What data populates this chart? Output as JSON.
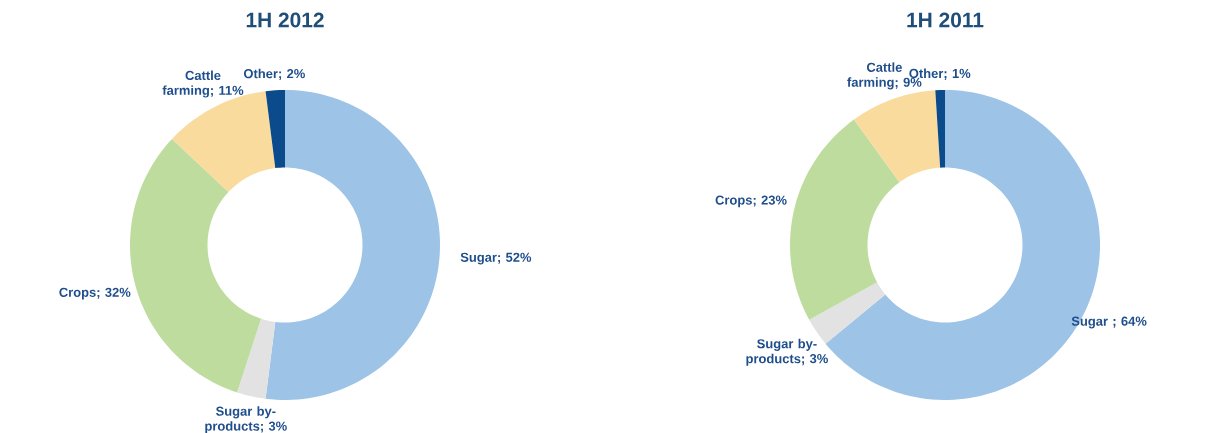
{
  "chart_data": [
    {
      "type": "donut",
      "title": "1H 2012",
      "categories": [
        "Sugar; 52%",
        "Sugar by-products; 3%",
        "Crops; 32%",
        "Cattle farming; 11%",
        "Other; 2%"
      ],
      "values": [
        52,
        3,
        32,
        11,
        2
      ],
      "colors": [
        "#9dc3e6",
        "#e2e2e2",
        "#bddc9d",
        "#fadb9e",
        "#0b4a8b"
      ]
    },
    {
      "type": "donut",
      "title": "1H 2011",
      "categories": [
        "Sugar ; 64%",
        "Sugar by-products; 3%",
        "Crops; 23%",
        "Cattle farming; 9%",
        "Other; 1%"
      ],
      "values": [
        64,
        3,
        23,
        9,
        1
      ],
      "colors": [
        "#9dc3e6",
        "#e2e2e2",
        "#bddc9d",
        "#fadb9e",
        "#0b4a8b"
      ]
    }
  ]
}
